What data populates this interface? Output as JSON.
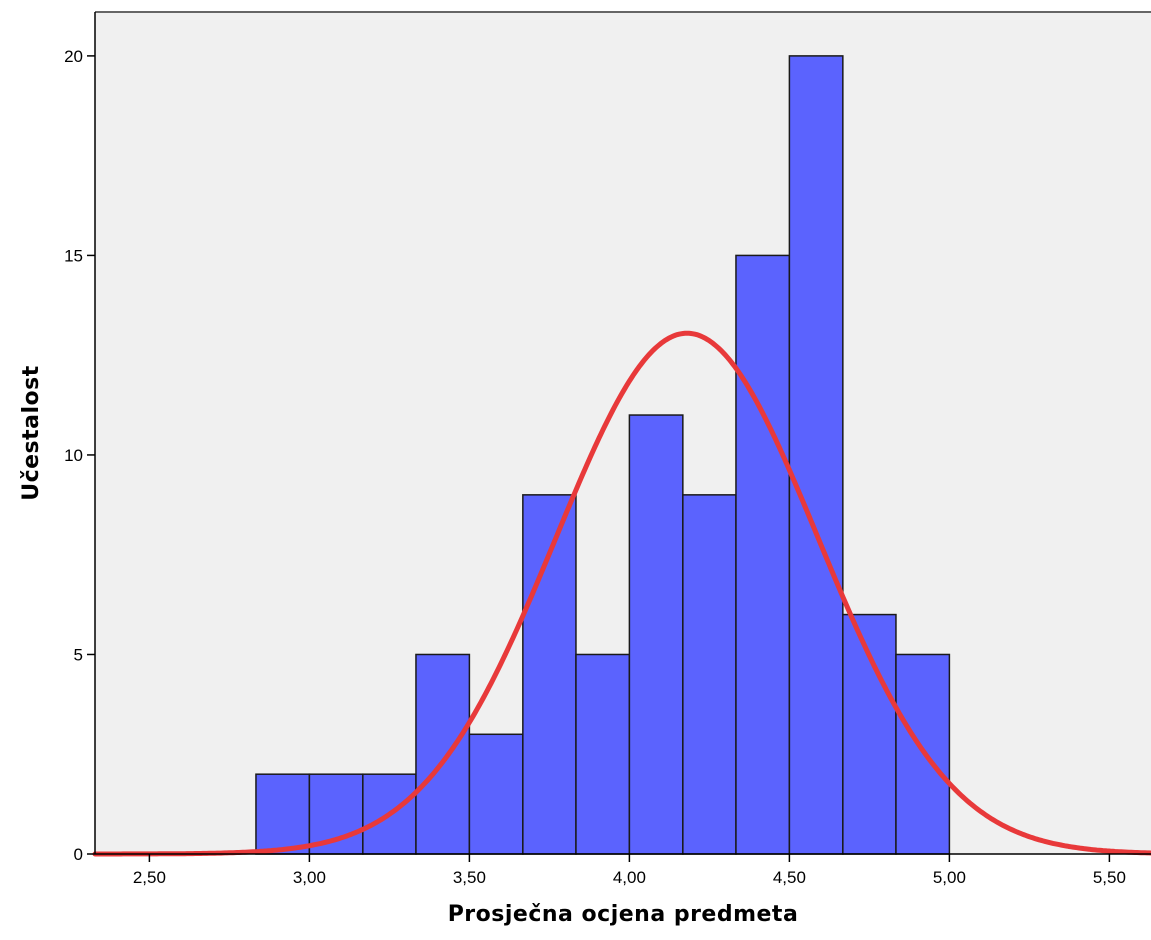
{
  "chart_data": {
    "type": "bar",
    "subtype": "histogram",
    "xlabel": "Prosječna ocjena predmeta",
    "ylabel": "Učestalost",
    "xlim": [
      2.33,
      5.63
    ],
    "ylim": [
      0,
      21.1
    ],
    "x_ticks": [
      {
        "value": 2.5,
        "label": "2,50"
      },
      {
        "value": 3.0,
        "label": "3,00"
      },
      {
        "value": 3.5,
        "label": "3,50"
      },
      {
        "value": 4.0,
        "label": "4,00"
      },
      {
        "value": 4.5,
        "label": "4,50"
      },
      {
        "value": 5.0,
        "label": "5,00"
      },
      {
        "value": 5.5,
        "label": "5,50"
      }
    ],
    "y_ticks": [
      {
        "value": 0,
        "label": "0"
      },
      {
        "value": 5,
        "label": "5"
      },
      {
        "value": 10,
        "label": "10"
      },
      {
        "value": 15,
        "label": "15"
      },
      {
        "value": 20,
        "label": "20"
      }
    ],
    "bin_edges": [
      2.833,
      3.0,
      3.167,
      3.333,
      3.5,
      3.667,
      3.833,
      4.0,
      4.167,
      4.333,
      4.5,
      4.667,
      4.833,
      5.0
    ],
    "counts": [
      2,
      2,
      2,
      5,
      3,
      9,
      5,
      11,
      9,
      15,
      20,
      6,
      5
    ],
    "normal_curve": {
      "mean": 4.18,
      "sd": 0.41,
      "peak": 13.05
    },
    "colors": {
      "bar_fill": "#5b63fe",
      "bar_stroke": "#1a1a1a",
      "curve": "#e8393a",
      "plot_background": "#f0f0f0"
    },
    "grid": false
  }
}
